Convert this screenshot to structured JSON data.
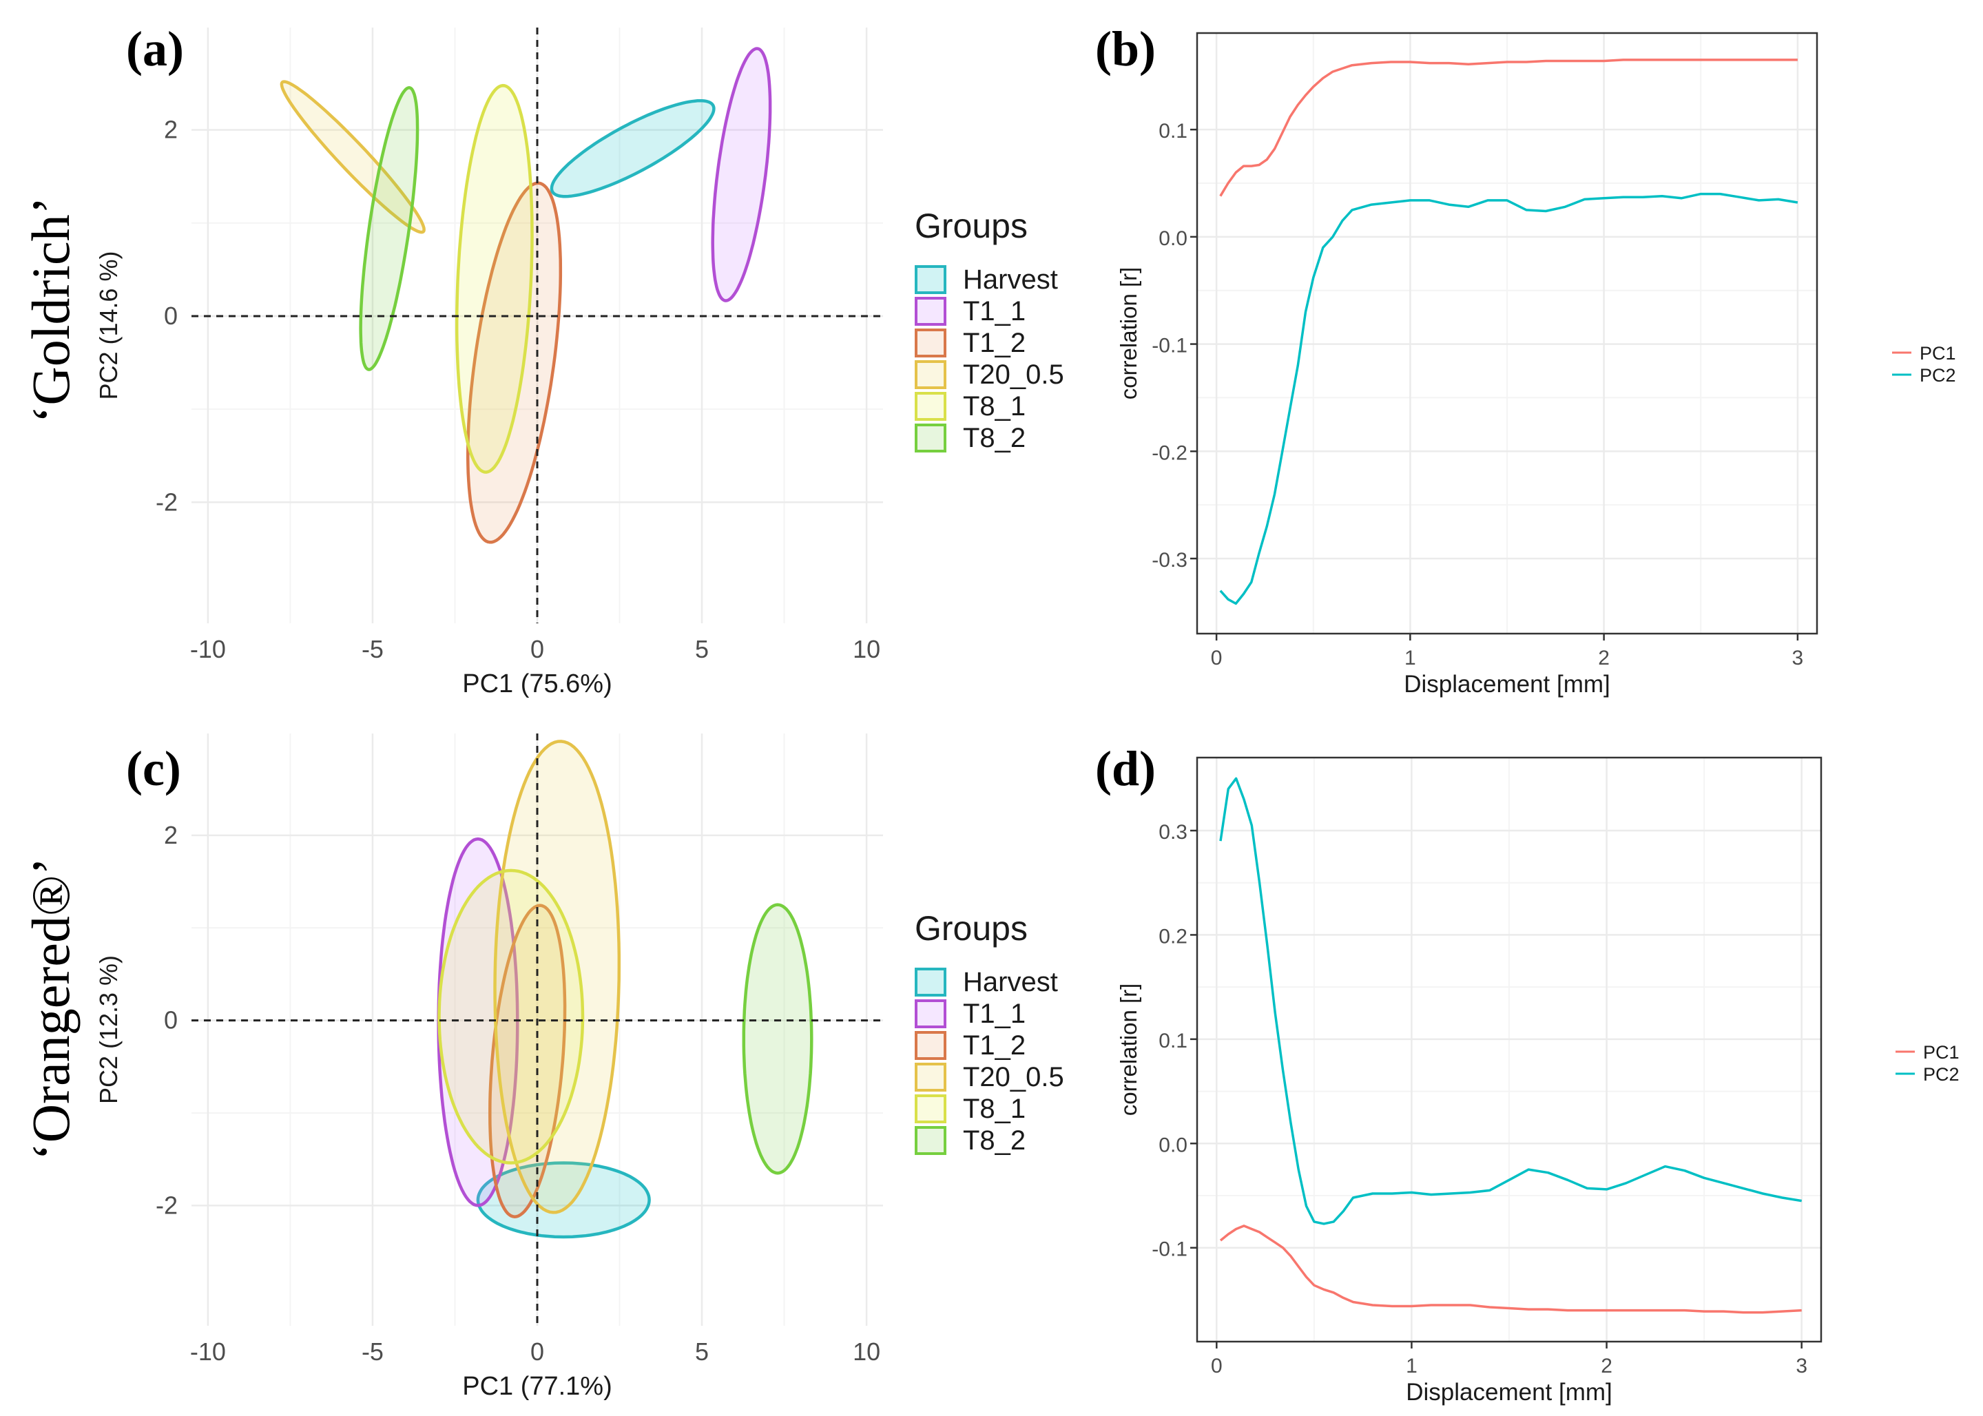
{
  "row_labels": [
    "‘Goldrich’",
    "‘Orangered®’"
  ],
  "legend": {
    "title": "Groups",
    "items": [
      "Harvest",
      "T1_1",
      "T1_2",
      "T20_0.5",
      "T8_1",
      "T8_2"
    ],
    "colors": [
      "#00BFC4",
      "#C77CFF",
      "#E7A36B",
      "#EAD15A",
      "#E5EE4E",
      "#7CCD4A"
    ],
    "stroke_colors": [
      "#26B6BF",
      "#B24FD4",
      "#D9784A",
      "#E5C24A",
      "#D9E04A",
      "#76CF3F"
    ]
  },
  "line_legend": {
    "labels": [
      "PC1",
      "PC2"
    ],
    "colors": [
      "#F8766D",
      "#00BFC4"
    ]
  },
  "chart_data": [
    {
      "panel": "(a)",
      "type": "scatter",
      "subtype": "pca_confidence_ellipses",
      "xlabel": "PC1 (75.6%)",
      "ylabel": "PC2 (14.6 %)",
      "xlim": [
        -10.5,
        10.5
      ],
      "ylim": [
        -3.3,
        3.1
      ],
      "xticks": [
        -10,
        -5,
        0,
        5,
        10
      ],
      "yticks": [
        -2,
        0,
        2
      ],
      "xtick_labels": [
        "-10",
        "-5",
        "0",
        "5",
        "10"
      ],
      "ytick_labels": [
        "-2",
        "0",
        "2"
      ],
      "ellipses": [
        {
          "group": "Harvest",
          "cx": 2.9,
          "cy": 1.8,
          "rx": 2.5,
          "ry": 0.28,
          "angle": 10
        },
        {
          "group": "T1_1",
          "cx": 6.2,
          "cy": 1.52,
          "rx": 1.46,
          "ry": 0.68,
          "angle": 65
        },
        {
          "group": "T1_2",
          "cx": -0.7,
          "cy": -0.5,
          "rx": 2.12,
          "ry": 1.1,
          "angle": 61
        },
        {
          "group": "T20_0.5",
          "cx": -5.6,
          "cy": 1.71,
          "rx": 2.3,
          "ry": 0.2,
          "angle": -20
        },
        {
          "group": "T8_1",
          "cx": -1.3,
          "cy": 0.4,
          "rx": 2.1,
          "ry": 1.1,
          "angle": 80
        },
        {
          "group": "T8_2",
          "cx": -4.5,
          "cy": 0.94,
          "rx": 1.65,
          "ry": 0.56,
          "angle": 65
        }
      ]
    },
    {
      "panel": "(b)",
      "type": "line",
      "xlabel": "Displacement [mm]",
      "ylabel": "correlation [r]",
      "xlim": [
        -0.1,
        3.1
      ],
      "ylim": [
        -0.37,
        0.19
      ],
      "xticks": [
        0,
        1,
        2,
        3
      ],
      "yticks": [
        -0.3,
        -0.2,
        -0.1,
        0.0,
        0.1
      ],
      "xtick_labels": [
        "0",
        "1",
        "2",
        "3"
      ],
      "ytick_labels": [
        "-0.3",
        "-0.2",
        "-0.1",
        "0.0",
        "0.1"
      ],
      "x": [
        0.02,
        0.06,
        0.1,
        0.14,
        0.18,
        0.22,
        0.26,
        0.3,
        0.34,
        0.38,
        0.42,
        0.46,
        0.5,
        0.55,
        0.6,
        0.65,
        0.7,
        0.8,
        0.9,
        1.0,
        1.1,
        1.2,
        1.3,
        1.4,
        1.5,
        1.6,
        1.7,
        1.8,
        1.9,
        2.0,
        2.1,
        2.2,
        2.3,
        2.4,
        2.5,
        2.6,
        2.7,
        2.8,
        2.9,
        3.0
      ],
      "series": [
        {
          "name": "PC1",
          "values": [
            0.038,
            0.05,
            0.06,
            0.066,
            0.066,
            0.067,
            0.072,
            0.082,
            0.097,
            0.112,
            0.123,
            0.132,
            0.14,
            0.148,
            0.154,
            0.157,
            0.16,
            0.162,
            0.163,
            0.163,
            0.162,
            0.162,
            0.161,
            0.162,
            0.163,
            0.163,
            0.164,
            0.164,
            0.164,
            0.164,
            0.165,
            0.165,
            0.165,
            0.165,
            0.165,
            0.165,
            0.165,
            0.165,
            0.165,
            0.165
          ]
        },
        {
          "name": "PC2",
          "values": [
            -0.33,
            -0.338,
            -0.342,
            -0.333,
            -0.322,
            -0.295,
            -0.27,
            -0.24,
            -0.2,
            -0.16,
            -0.12,
            -0.07,
            -0.038,
            -0.01,
            0.0,
            0.015,
            0.025,
            0.03,
            0.032,
            0.034,
            0.034,
            0.03,
            0.028,
            0.034,
            0.034,
            0.025,
            0.024,
            0.028,
            0.035,
            0.036,
            0.037,
            0.037,
            0.038,
            0.036,
            0.04,
            0.04,
            0.037,
            0.034,
            0.035,
            0.032
          ]
        }
      ]
    },
    {
      "panel": "(c)",
      "type": "scatter",
      "subtype": "pca_confidence_ellipses",
      "xlabel": "PC1 (77.1%)",
      "ylabel": "PC2 (12.3 %)",
      "xlim": [
        -10.5,
        10.5
      ],
      "ylim": [
        -3.3,
        3.1
      ],
      "xticks": [
        -10,
        -5,
        0,
        5,
        10
      ],
      "yticks": [
        -2,
        0,
        2
      ],
      "xtick_labels": [
        "-10",
        "-5",
        "0",
        "5",
        "10"
      ],
      "ytick_labels": [
        "-2",
        "0",
        "2"
      ],
      "ellipses": [
        {
          "group": "Harvest",
          "cx": 0.8,
          "cy": -1.94,
          "rx": 2.6,
          "ry": 0.4,
          "angle": 0
        },
        {
          "group": "T1_1",
          "cx": -1.8,
          "cy": -0.02,
          "rx": 1.2,
          "ry": 1.98,
          "angle": 0
        },
        {
          "group": "T1_2",
          "cx": -0.3,
          "cy": -0.44,
          "rx": 1.75,
          "ry": 1.03,
          "angle": 70
        },
        {
          "group": "T20_0.5",
          "cx": 0.6,
          "cy": 0.47,
          "rx": 2.55,
          "ry": 1.88,
          "angle": 85
        },
        {
          "group": "T8_1",
          "cx": -0.8,
          "cy": 0.04,
          "rx": 1.58,
          "ry": 2.18,
          "angle": 90
        },
        {
          "group": "T8_2",
          "cx": 7.3,
          "cy": -0.2,
          "rx": 1.45,
          "ry": 1.03,
          "angle": 90
        }
      ]
    },
    {
      "panel": "(d)",
      "type": "line",
      "xlabel": "Displacement [mm]",
      "ylabel": "correlation [r]",
      "xlim": [
        -0.1,
        3.1
      ],
      "ylim": [
        -0.19,
        0.37
      ],
      "xticks": [
        0,
        1,
        2,
        3
      ],
      "yticks": [
        -0.1,
        0.0,
        0.1,
        0.2,
        0.3
      ],
      "xtick_labels": [
        "0",
        "1",
        "2",
        "3"
      ],
      "ytick_labels": [
        "-0.1",
        "0.0",
        "0.1",
        "0.2",
        "0.3"
      ],
      "x": [
        0.02,
        0.06,
        0.1,
        0.14,
        0.18,
        0.22,
        0.26,
        0.3,
        0.34,
        0.38,
        0.42,
        0.46,
        0.5,
        0.55,
        0.6,
        0.65,
        0.7,
        0.8,
        0.9,
        1.0,
        1.1,
        1.2,
        1.3,
        1.4,
        1.5,
        1.6,
        1.7,
        1.8,
        1.9,
        2.0,
        2.1,
        2.2,
        2.3,
        2.4,
        2.5,
        2.6,
        2.7,
        2.8,
        2.9,
        3.0
      ],
      "series": [
        {
          "name": "PC1",
          "values": [
            -0.093,
            -0.087,
            -0.082,
            -0.079,
            -0.082,
            -0.085,
            -0.09,
            -0.095,
            -0.1,
            -0.108,
            -0.118,
            -0.128,
            -0.136,
            -0.14,
            -0.143,
            -0.148,
            -0.152,
            -0.155,
            -0.156,
            -0.156,
            -0.155,
            -0.155,
            -0.155,
            -0.157,
            -0.158,
            -0.159,
            -0.159,
            -0.16,
            -0.16,
            -0.16,
            -0.16,
            -0.16,
            -0.16,
            -0.16,
            -0.161,
            -0.161,
            -0.162,
            -0.162,
            -0.161,
            -0.16
          ]
        },
        {
          "name": "PC2",
          "values": [
            0.29,
            0.34,
            0.35,
            0.33,
            0.305,
            0.25,
            0.19,
            0.125,
            0.07,
            0.02,
            -0.025,
            -0.06,
            -0.075,
            -0.077,
            -0.075,
            -0.065,
            -0.052,
            -0.048,
            -0.048,
            -0.047,
            -0.049,
            -0.048,
            -0.047,
            -0.045,
            -0.035,
            -0.025,
            -0.028,
            -0.035,
            -0.043,
            -0.044,
            -0.038,
            -0.03,
            -0.022,
            -0.026,
            -0.033,
            -0.038,
            -0.043,
            -0.048,
            -0.052,
            -0.055
          ]
        }
      ]
    }
  ]
}
